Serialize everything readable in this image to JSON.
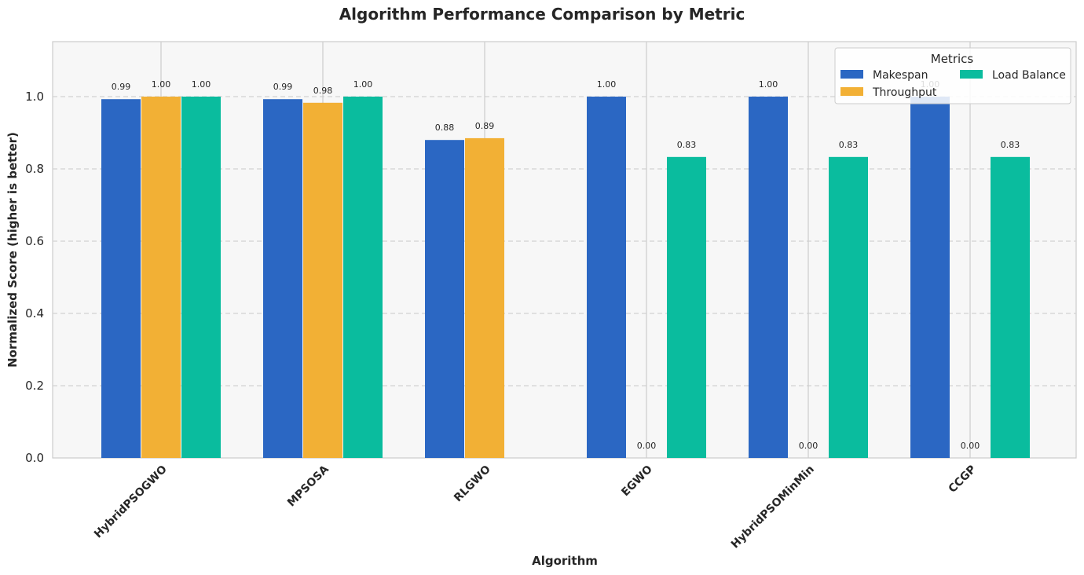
{
  "chart_data": {
    "type": "bar",
    "title": "Algorithm Performance Comparison by Metric",
    "xlabel": "Algorithm",
    "ylabel": "Normalized Score (higher is better)",
    "categories": [
      "HybridPSOGWO",
      "MPSOSA",
      "RLGWO",
      "EGWO",
      "HybridPSOMinMin",
      "CCGP"
    ],
    "series": [
      {
        "name": "Makespan",
        "color": "#2b67c3",
        "values": [
          0.993,
          0.993,
          0.88,
          1.0,
          1.0,
          1.0
        ],
        "labels": [
          "0.99",
          "0.99",
          "0.88",
          "1.00",
          "1.00",
          "1.00"
        ]
      },
      {
        "name": "Throughput",
        "color": "#f2b035",
        "values": [
          1.0,
          0.983,
          0.885,
          0.0,
          0.0,
          0.0
        ],
        "labels": [
          "1.00",
          "0.98",
          "0.89",
          "0.00",
          "0.00",
          "0.00"
        ]
      },
      {
        "name": "Load Balance",
        "color": "#0abc9e",
        "values": [
          1.0,
          1.0,
          null,
          0.833,
          0.833,
          0.833
        ],
        "labels": [
          "1.00",
          "1.00",
          null,
          "0.83",
          "0.83",
          "0.83"
        ]
      }
    ],
    "ylim": [
      0,
      1.15
    ],
    "yticks": [
      "0.0",
      "0.2",
      "0.4",
      "0.6",
      "0.8",
      "1.0"
    ],
    "grid": true,
    "legend": {
      "title": "Metrics",
      "placement": "top-right"
    }
  }
}
